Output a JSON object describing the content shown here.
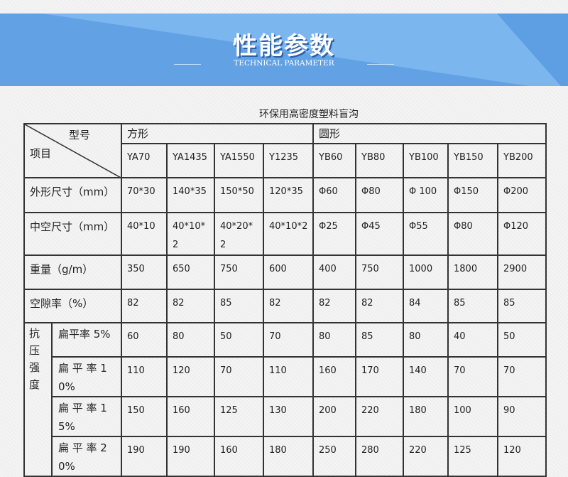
{
  "banner": {
    "title": "性能参数",
    "subtitle": "TECHNICAL PARAMETER"
  },
  "table": {
    "title": "环保用高密度塑料盲沟",
    "corner_top": "型号",
    "corner_bottom": "项目",
    "groups": [
      "方形",
      "圆形"
    ],
    "models": [
      "YA70",
      "YA1435",
      "YA1550",
      "Y1235",
      "YB60",
      "YB80",
      "YB100",
      "YB150",
      "YB200"
    ],
    "rows": [
      {
        "label": "外形尺寸（mm）",
        "values": [
          "70*30",
          "140*35",
          "150*50",
          "120*35",
          "Φ60",
          "Φ80",
          "Φ 100",
          "Φ150",
          "Φ200"
        ]
      },
      {
        "label": "中空尺寸（mm）",
        "values": [
          "40*10",
          "40*10*2",
          "40*20*2",
          "40*10*2",
          "Φ25",
          "Φ45",
          "Φ55",
          "Φ80",
          "Φ120"
        ]
      },
      {
        "label": "重量（g/m）",
        "values": [
          "350",
          "650",
          "750",
          "600",
          "400",
          "750",
          "1000",
          "1800",
          "2900"
        ]
      },
      {
        "label": "空隙率（%）",
        "values": [
          "82",
          "82",
          "85",
          "82",
          "82",
          "82",
          "84",
          "85",
          "85"
        ]
      }
    ],
    "strength_label": "抗压强度",
    "strength_rows": [
      {
        "label": "扁平率 5%",
        "values": [
          "60",
          "80",
          "50",
          "70",
          "80",
          "85",
          "80",
          "40",
          "50"
        ]
      },
      {
        "label": "扁 平 率 10%",
        "values": [
          "110",
          "120",
          "70",
          "110",
          "160",
          "170",
          "140",
          "70",
          "70"
        ]
      },
      {
        "label": "扁 平 率 15%",
        "values": [
          "150",
          "160",
          "125",
          "130",
          "200",
          "220",
          "180",
          "100",
          "90"
        ]
      },
      {
        "label": "扁 平 率 20%",
        "values": [
          "190",
          "190",
          "160",
          "180",
          "250",
          "280",
          "220",
          "125",
          "120"
        ]
      }
    ]
  }
}
